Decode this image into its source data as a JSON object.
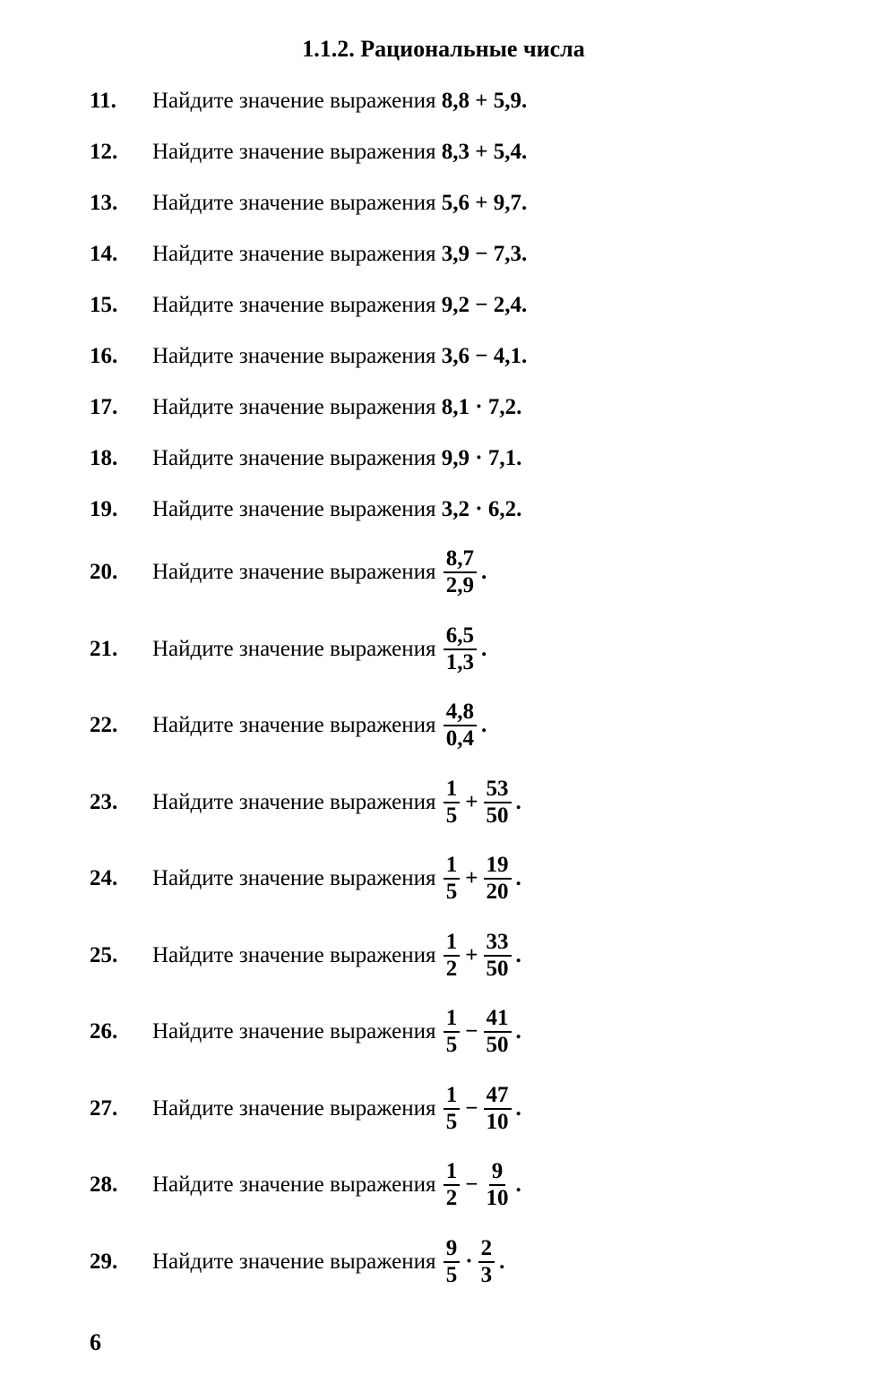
{
  "section_title": "1.1.2. Рациональные числа",
  "stem_text": "Найдите значение выражения ",
  "page_number": "6",
  "problems": [
    {
      "n": "11.",
      "type": "plain",
      "expr": "8,8 + 5,9."
    },
    {
      "n": "12.",
      "type": "plain",
      "expr": "8,3 + 5,4."
    },
    {
      "n": "13.",
      "type": "plain",
      "expr": "5,6 + 9,7."
    },
    {
      "n": "14.",
      "type": "plain",
      "expr": "3,9 − 7,3."
    },
    {
      "n": "15.",
      "type": "plain",
      "expr": "9,2 − 2,4."
    },
    {
      "n": "16.",
      "type": "plain",
      "expr": "3,6 − 4,1."
    },
    {
      "n": "17.",
      "type": "plain",
      "expr": "8,1 · 7,2."
    },
    {
      "n": "18.",
      "type": "plain",
      "expr": "9,9 · 7,1."
    },
    {
      "n": "19.",
      "type": "plain",
      "expr": "3,2 · 6,2."
    },
    {
      "n": "20.",
      "type": "frac1",
      "num": "8,7",
      "den": "2,9"
    },
    {
      "n": "21.",
      "type": "frac1",
      "num": "6,5",
      "den": "1,3"
    },
    {
      "n": "22.",
      "type": "frac1",
      "num": "4,8",
      "den": "0,4"
    },
    {
      "n": "23.",
      "type": "frac2",
      "num1": "1",
      "den1": "5",
      "op": "+",
      "num2": "53",
      "den2": "50"
    },
    {
      "n": "24.",
      "type": "frac2",
      "num1": "1",
      "den1": "5",
      "op": "+",
      "num2": "19",
      "den2": "20"
    },
    {
      "n": "25.",
      "type": "frac2",
      "num1": "1",
      "den1": "2",
      "op": "+",
      "num2": "33",
      "den2": "50"
    },
    {
      "n": "26.",
      "type": "frac2",
      "num1": "1",
      "den1": "5",
      "op": "−",
      "num2": "41",
      "den2": "50"
    },
    {
      "n": "27.",
      "type": "frac2",
      "num1": "1",
      "den1": "5",
      "op": "−",
      "num2": "47",
      "den2": "10"
    },
    {
      "n": "28.",
      "type": "frac2",
      "num1": "1",
      "den1": "2",
      "op": "−",
      "num2": "9",
      "den2": "10"
    },
    {
      "n": "29.",
      "type": "frac2",
      "num1": "9",
      "den1": "5",
      "op": "·",
      "num2": "2",
      "den2": "3"
    }
  ]
}
